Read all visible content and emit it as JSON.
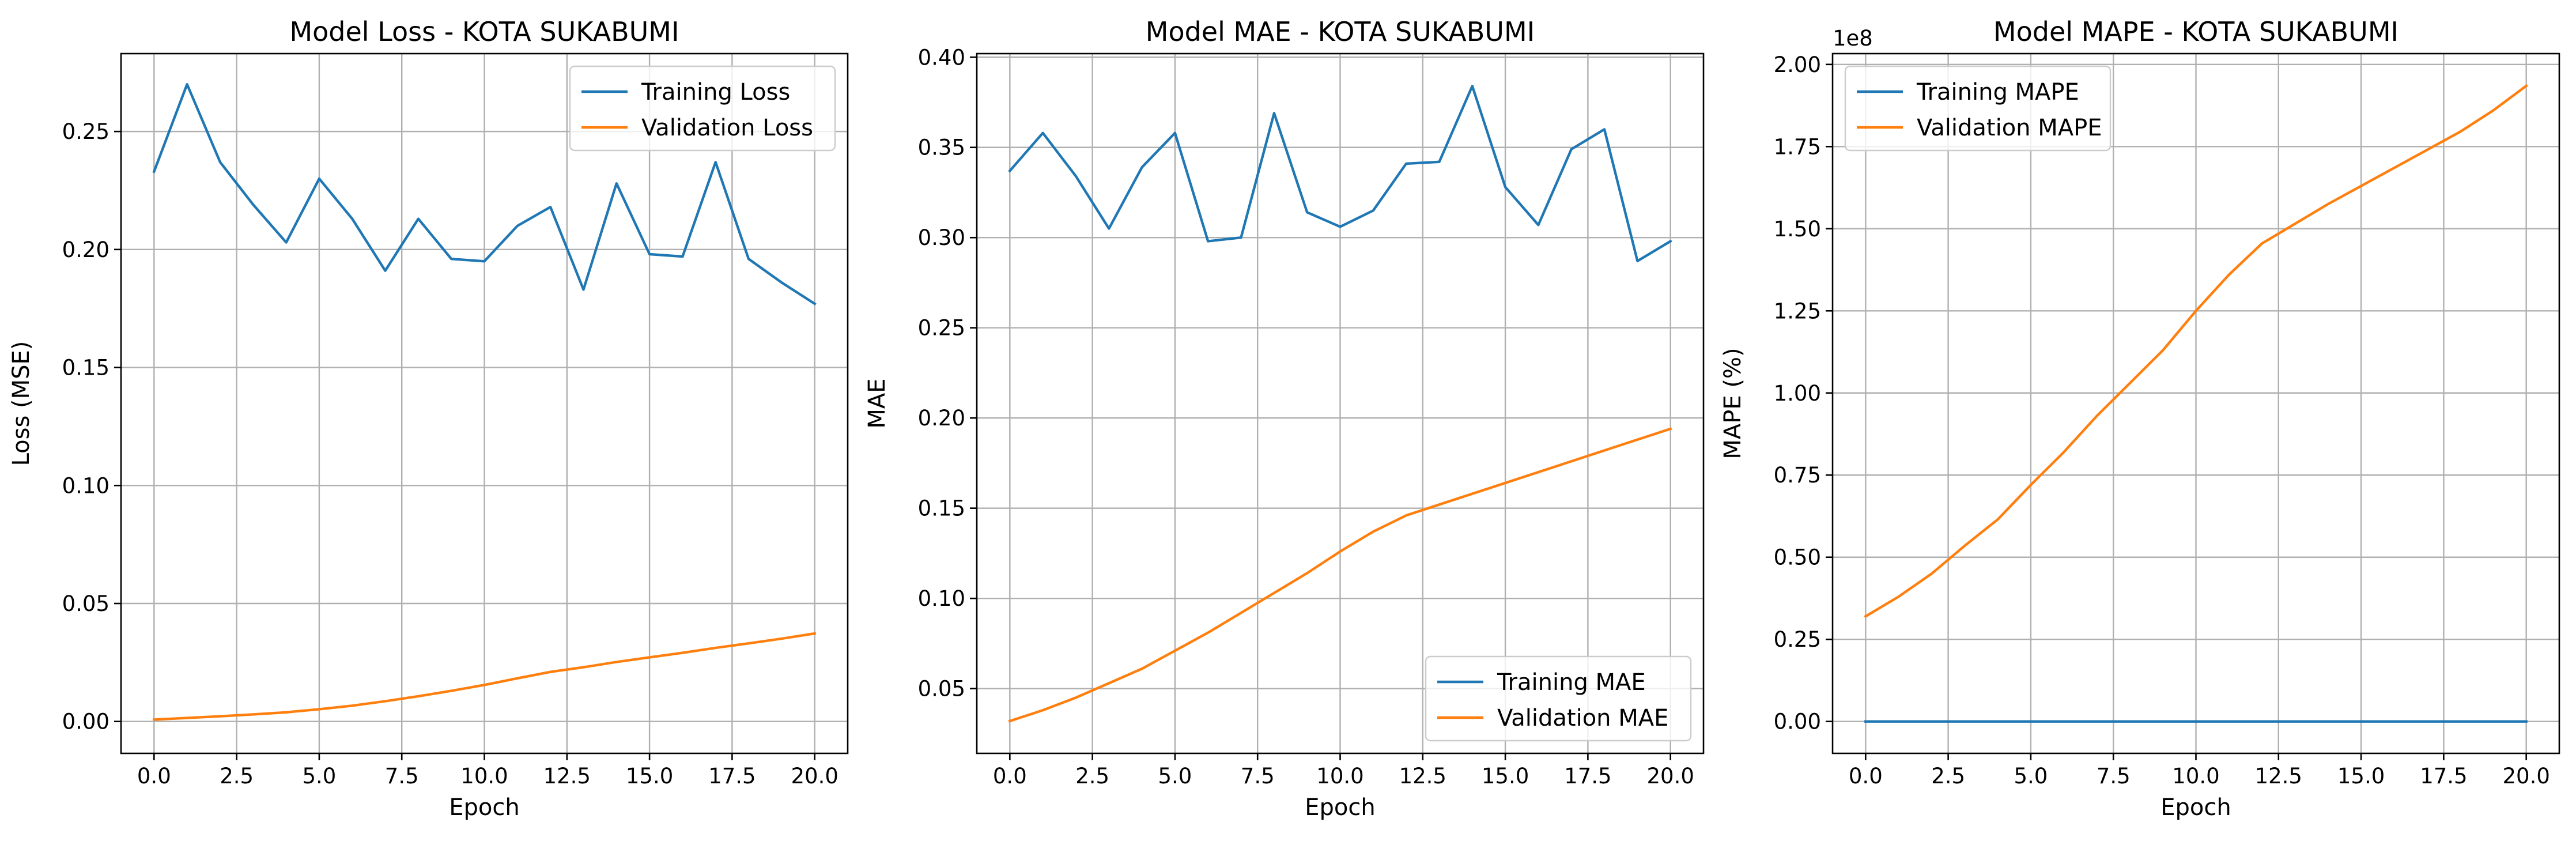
{
  "chart_data": [
    {
      "type": "line",
      "title": "Model Loss - KOTA SUKABUMI",
      "xlabel": "Epoch",
      "ylabel": "Loss (MSE)",
      "xlim": [
        -1,
        21
      ],
      "ylim": [
        -0.0135,
        0.283
      ],
      "xticks": [
        0,
        2.5,
        5,
        7.5,
        10,
        12.5,
        15,
        17.5,
        20
      ],
      "xtick_labels": [
        "0.0",
        "2.5",
        "5.0",
        "7.5",
        "10.0",
        "12.5",
        "15.0",
        "17.5",
        "20.0"
      ],
      "yticks": [
        0,
        0.05,
        0.1,
        0.15,
        0.2,
        0.25
      ],
      "ytick_labels": [
        "0.00",
        "0.05",
        "0.10",
        "0.15",
        "0.20",
        "0.25"
      ],
      "offset_label": "",
      "grid": true,
      "legend_position": "top-right",
      "x": [
        0,
        1,
        2,
        3,
        4,
        5,
        6,
        7,
        8,
        9,
        10,
        11,
        12,
        13,
        14,
        15,
        16,
        17,
        18,
        19,
        20
      ],
      "series": [
        {
          "name": "Training Loss",
          "color": "#1f77b4",
          "values": [
            0.233,
            0.27,
            0.237,
            0.219,
            0.203,
            0.23,
            0.213,
            0.191,
            0.213,
            0.196,
            0.195,
            0.21,
            0.218,
            0.183,
            0.228,
            0.198,
            0.197,
            0.237,
            0.196,
            0.186,
            0.177
          ]
        },
        {
          "name": "Validation Loss",
          "color": "#ff7f0e",
          "values": [
            0.0008,
            0.0015,
            0.0022,
            0.003,
            0.0039,
            0.0052,
            0.0067,
            0.0086,
            0.0107,
            0.013,
            0.0155,
            0.0183,
            0.021,
            0.023,
            0.0252,
            0.0272,
            0.0291,
            0.0312,
            0.0331,
            0.0351,
            0.0373
          ]
        }
      ]
    },
    {
      "type": "line",
      "title": "Model MAE - KOTA SUKABUMI",
      "xlabel": "Epoch",
      "ylabel": "MAE",
      "xlim": [
        -1,
        21
      ],
      "ylim": [
        0.0141,
        0.402
      ],
      "xticks": [
        0,
        2.5,
        5,
        7.5,
        10,
        12.5,
        15,
        17.5,
        20
      ],
      "xtick_labels": [
        "0.0",
        "2.5",
        "5.0",
        "7.5",
        "10.0",
        "12.5",
        "15.0",
        "17.5",
        "20.0"
      ],
      "yticks": [
        0.05,
        0.1,
        0.15,
        0.2,
        0.25,
        0.3,
        0.35,
        0.4
      ],
      "ytick_labels": [
        "0.05",
        "0.10",
        "0.15",
        "0.20",
        "0.25",
        "0.30",
        "0.35",
        "0.40"
      ],
      "offset_label": "",
      "grid": true,
      "legend_position": "bottom-right",
      "x": [
        0,
        1,
        2,
        3,
        4,
        5,
        6,
        7,
        8,
        9,
        10,
        11,
        12,
        13,
        14,
        15,
        16,
        17,
        18,
        19,
        20
      ],
      "series": [
        {
          "name": "Training MAE",
          "color": "#1f77b4",
          "values": [
            0.337,
            0.358,
            0.334,
            0.305,
            0.339,
            0.358,
            0.298,
            0.3,
            0.369,
            0.314,
            0.306,
            0.315,
            0.341,
            0.342,
            0.384,
            0.328,
            0.307,
            0.349,
            0.36,
            0.287,
            0.298
          ]
        },
        {
          "name": "Validation MAE",
          "color": "#ff7f0e",
          "values": [
            0.032,
            0.038,
            0.045,
            0.053,
            0.061,
            0.071,
            0.081,
            0.092,
            0.103,
            0.114,
            0.126,
            0.137,
            0.146,
            0.152,
            0.158,
            0.164,
            0.17,
            0.176,
            0.182,
            0.188,
            0.194
          ]
        }
      ]
    },
    {
      "type": "line",
      "title": "Model MAPE - KOTA SUKABUMI",
      "xlabel": "Epoch",
      "ylabel": "MAPE (%)",
      "xlim": [
        -1,
        21
      ],
      "ylim": [
        -0.097,
        2.033
      ],
      "xticks": [
        0,
        2.5,
        5,
        7.5,
        10,
        12.5,
        15,
        17.5,
        20
      ],
      "xtick_labels": [
        "0.0",
        "2.5",
        "5.0",
        "7.5",
        "10.0",
        "12.5",
        "15.0",
        "17.5",
        "20.0"
      ],
      "yticks": [
        0,
        0.25,
        0.5,
        0.75,
        1.0,
        1.25,
        1.5,
        1.75,
        2.0
      ],
      "ytick_labels": [
        "0.00",
        "0.25",
        "0.50",
        "0.75",
        "1.00",
        "1.25",
        "1.50",
        "1.75",
        "2.00"
      ],
      "offset_label": "1e8",
      "grid": true,
      "legend_position": "top-left",
      "x": [
        0,
        1,
        2,
        3,
        4,
        5,
        6,
        7,
        8,
        9,
        10,
        11,
        12,
        13,
        14,
        15,
        16,
        17,
        18,
        19,
        20
      ],
      "series": [
        {
          "name": "Training MAPE",
          "color": "#1f77b4",
          "values": [
            0,
            0,
            0,
            0,
            0,
            0,
            0,
            0,
            0,
            0,
            0,
            0,
            0,
            0,
            0,
            0,
            0,
            0,
            0,
            0,
            0
          ]
        },
        {
          "name": "Validation MAPE",
          "color": "#ff7f0e",
          "values": [
            0.32,
            0.38,
            0.45,
            0.535,
            0.615,
            0.72,
            0.82,
            0.93,
            1.03,
            1.13,
            1.25,
            1.36,
            1.455,
            1.515,
            1.575,
            1.63,
            1.685,
            1.74,
            1.795,
            1.86,
            1.935
          ]
        }
      ]
    }
  ]
}
